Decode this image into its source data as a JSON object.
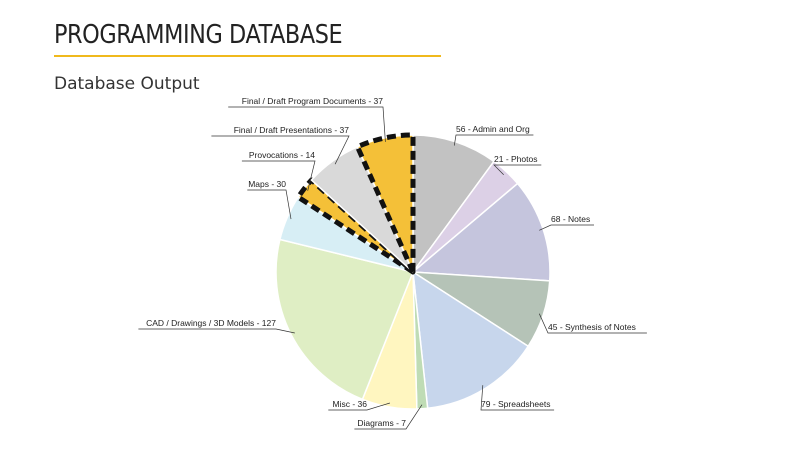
{
  "header": {
    "title": "PROGRAMMING DATABASE",
    "subtitle": "Database Output",
    "accent_color": "#f0b91c"
  },
  "chart_data": {
    "type": "pie",
    "title": "",
    "start_angle_deg": 0,
    "direction": "clockwise",
    "slices": [
      {
        "label": "56 - Admin and Org",
        "value": 56,
        "color": "#c2c2c2"
      },
      {
        "label": "21 - Photos",
        "value": 21,
        "color": "#dcd0e6"
      },
      {
        "label": "68 - Notes",
        "value": 68,
        "color": "#c5c5dd"
      },
      {
        "label": "45 - Synthesis of Notes",
        "value": 45,
        "color": "#b5c3b7"
      },
      {
        "label": "79 - Spreadsheets",
        "value": 79,
        "color": "#c7d6ec"
      },
      {
        "label": "Diagrams - 7",
        "value": 7,
        "color": "#bfdcb5"
      },
      {
        "label": "Misc - 36",
        "value": 36,
        "color": "#fff6c0"
      },
      {
        "label": "CAD / Drawings / 3D Models - 127",
        "value": 127,
        "color": "#dfeec4"
      },
      {
        "label": "Maps - 30",
        "value": 30,
        "color": "#d7eef5"
      },
      {
        "label": "Provocations - 14",
        "value": 14,
        "color": "#f4c038",
        "highlight": true
      },
      {
        "label": "Final / Draft Presentations - 37",
        "value": 37,
        "color": "#d9d9d9"
      },
      {
        "label": "Final / Draft Program Documents - 37",
        "value": 37,
        "color": "#f4c038",
        "highlight": true
      }
    ]
  }
}
